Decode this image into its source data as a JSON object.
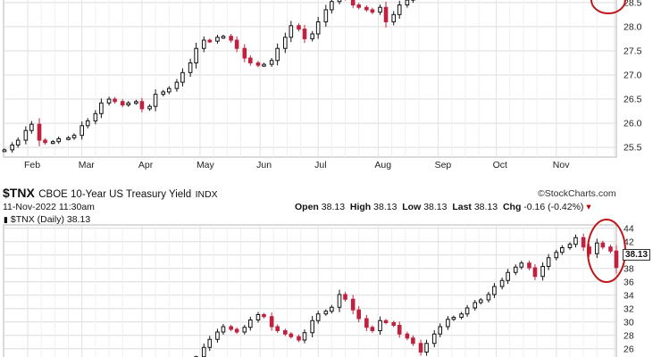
{
  "chart_data": [
    {
      "type": "candlestick",
      "panel": "upper",
      "x_ticks": [
        "Feb",
        "Mar",
        "Apr",
        "May",
        "Jun",
        "Jul",
        "Aug",
        "Sep",
        "Oct",
        "Nov"
      ],
      "y_ticks": [
        "28.5",
        "28.0",
        "27.5",
        "27.0",
        "26.5",
        "26.0",
        "25.5"
      ],
      "ylim": [
        25.3,
        28.7
      ],
      "grid": true,
      "annotation": "red circle at right edge, top",
      "series": [
        {
          "values": [
            [
              "2022-01-20",
              25.45
            ],
            [
              "2022-01-24",
              25.55
            ],
            [
              "2022-01-27",
              25.65
            ],
            [
              "2022-01-31",
              25.85
            ],
            [
              "2022-02-03",
              25.98
            ],
            [
              "2022-02-07",
              25.65
            ],
            [
              "2022-02-10",
              25.6
            ],
            [
              "2022-02-14",
              25.62
            ],
            [
              "2022-02-17",
              25.68
            ],
            [
              "2022-02-22",
              25.7
            ],
            [
              "2022-02-25",
              25.75
            ],
            [
              "2022-03-01",
              25.95
            ],
            [
              "2022-03-04",
              26.05
            ],
            [
              "2022-03-08",
              26.2
            ],
            [
              "2022-03-11",
              26.42
            ],
            [
              "2022-03-15",
              26.5
            ],
            [
              "2022-03-18",
              26.45
            ],
            [
              "2022-03-22",
              26.38
            ],
            [
              "2022-03-25",
              26.42
            ],
            [
              "2022-03-29",
              26.45
            ],
            [
              "2022-04-01",
              26.3
            ],
            [
              "2022-04-05",
              26.35
            ],
            [
              "2022-04-08",
              26.6
            ],
            [
              "2022-04-12",
              26.65
            ],
            [
              "2022-04-15",
              26.72
            ],
            [
              "2022-04-19",
              26.85
            ],
            [
              "2022-04-22",
              27.05
            ],
            [
              "2022-04-26",
              27.25
            ],
            [
              "2022-04-29",
              27.55
            ],
            [
              "2022-05-03",
              27.72
            ],
            [
              "2022-05-06",
              27.7
            ],
            [
              "2022-05-10",
              27.78
            ],
            [
              "2022-05-13",
              27.8
            ],
            [
              "2022-05-17",
              27.72
            ],
            [
              "2022-05-20",
              27.55
            ],
            [
              "2022-05-24",
              27.35
            ],
            [
              "2022-05-27",
              27.25
            ],
            [
              "2022-05-31",
              27.2
            ],
            [
              "2022-06-03",
              27.22
            ],
            [
              "2022-06-07",
              27.3
            ],
            [
              "2022-06-10",
              27.55
            ],
            [
              "2022-06-14",
              27.78
            ],
            [
              "2022-06-17",
              28.02
            ],
            [
              "2022-06-21",
              27.95
            ],
            [
              "2022-06-24",
              27.75
            ],
            [
              "2022-06-28",
              27.85
            ],
            [
              "2022-07-01",
              28.1
            ],
            [
              "2022-07-05",
              28.35
            ],
            [
              "2022-07-08",
              28.52
            ],
            [
              "2022-07-12",
              28.62
            ],
            [
              "2022-07-15",
              28.58
            ],
            [
              "2022-07-19",
              28.45
            ],
            [
              "2022-07-22",
              28.4
            ],
            [
              "2022-07-26",
              28.35
            ],
            [
              "2022-07-29",
              28.3
            ],
            [
              "2022-08-02",
              28.4
            ],
            [
              "2022-08-05",
              28.1
            ],
            [
              "2022-08-09",
              28.25
            ],
            [
              "2022-08-12",
              28.45
            ],
            [
              "2022-08-16",
              28.55
            ],
            [
              "2022-08-19",
              28.65
            ]
          ]
        }
      ]
    },
    {
      "type": "candlestick",
      "panel": "lower",
      "title": "$TNX CBOE 10-Year US Treasury Yield INDX",
      "symbol": "$TNX",
      "name": "CBOE 10-Year US Treasury Yield",
      "exchange": "INDX",
      "date_label": "11-Nov-2022 11:30am",
      "source_label": "©StockCharts.com",
      "legend_label": "$TNX (Daily) 38.13",
      "ohlc": {
        "open_label": "Open",
        "open": "38.13",
        "high_label": "High",
        "high": "38.13",
        "low_label": "Low",
        "low": "38.13",
        "last_label": "Last",
        "last": "38.13",
        "chg_label": "Chg",
        "chg": "-0.16 (-0.42%)"
      },
      "last_value": "38.13",
      "y_ticks": [
        "44",
        "42",
        "40",
        "38",
        "36",
        "34",
        "32",
        "30",
        "28",
        "26"
      ],
      "ylim": [
        24.5,
        44.5
      ],
      "grid": true,
      "annotation": "red circle at right edge around latest price",
      "series": [
        {
          "values": [
            [
              "2022-04-29",
              24.8
            ],
            [
              "2022-05-03",
              26.2
            ],
            [
              "2022-05-06",
              27.4
            ],
            [
              "2022-05-10",
              28.5
            ],
            [
              "2022-05-13",
              29.3
            ],
            [
              "2022-05-17",
              28.9
            ],
            [
              "2022-05-20",
              28.5
            ],
            [
              "2022-05-24",
              29.2
            ],
            [
              "2022-05-27",
              30.3
            ],
            [
              "2022-05-31",
              31.1
            ],
            [
              "2022-06-03",
              30.8
            ],
            [
              "2022-06-07",
              29.3
            ],
            [
              "2022-06-10",
              28.7
            ],
            [
              "2022-06-14",
              28.2
            ],
            [
              "2022-06-17",
              27.8
            ],
            [
              "2022-06-21",
              27.3
            ],
            [
              "2022-06-24",
              28.4
            ],
            [
              "2022-06-28",
              30.2
            ],
            [
              "2022-07-01",
              31.2
            ],
            [
              "2022-07-05",
              31.6
            ],
            [
              "2022-07-08",
              32.2
            ],
            [
              "2022-07-12",
              34.1
            ],
            [
              "2022-07-15",
              33.4
            ],
            [
              "2022-07-19",
              31.8
            ],
            [
              "2022-07-22",
              30.5
            ],
            [
              "2022-07-26",
              29.2
            ],
            [
              "2022-07-29",
              28.7
            ],
            [
              "2022-08-02",
              30.2
            ],
            [
              "2022-08-05",
              29.9
            ],
            [
              "2022-08-09",
              29.5
            ],
            [
              "2022-08-12",
              28.2
            ],
            [
              "2022-08-16",
              27.6
            ],
            [
              "2022-08-19",
              26.8
            ],
            [
              "2022-08-23",
              25.5
            ],
            [
              "2022-08-26",
              26.8
            ],
            [
              "2022-08-30",
              28.2
            ],
            [
              "2022-09-02",
              29.3
            ],
            [
              "2022-09-06",
              30.4
            ],
            [
              "2022-09-09",
              30.7
            ],
            [
              "2022-09-13",
              31.2
            ],
            [
              "2022-09-16",
              32.1
            ],
            [
              "2022-09-20",
              32.9
            ],
            [
              "2022-09-23",
              33.3
            ],
            [
              "2022-09-27",
              34.1
            ],
            [
              "2022-09-30",
              35.3
            ],
            [
              "2022-10-04",
              36.2
            ],
            [
              "2022-10-07",
              37.4
            ],
            [
              "2022-10-11",
              38.2
            ],
            [
              "2022-10-14",
              38.8
            ],
            [
              "2022-10-18",
              38.1
            ],
            [
              "2022-10-21",
              36.8
            ],
            [
              "2022-10-25",
              38.3
            ],
            [
              "2022-10-28",
              39.6
            ],
            [
              "2022-11-01",
              40.4
            ],
            [
              "2022-11-04",
              41.1
            ],
            [
              "2022-11-08",
              41.6
            ],
            [
              "2022-11-11",
              42.6
            ],
            [
              "2022-11-15",
              41.2
            ],
            [
              "2022-11-18",
              40.2
            ],
            [
              "2022-11-22",
              41.8
            ],
            [
              "2022-11-25",
              41.2
            ],
            [
              "2022-11-29",
              40.6
            ],
            [
              "2022-12-02",
              38.13
            ]
          ]
        }
      ]
    }
  ]
}
